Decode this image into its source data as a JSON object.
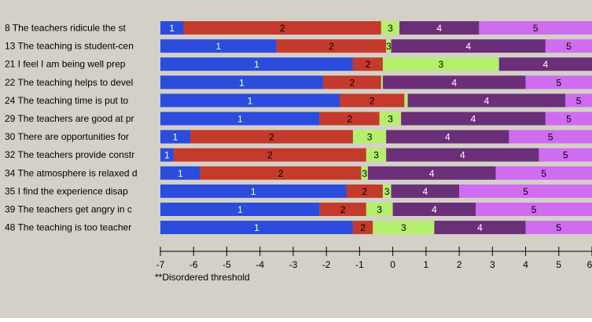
{
  "chart_data": {
    "type": "bar",
    "orientation": "horizontal",
    "stacked": true,
    "xlim": [
      -7,
      6
    ],
    "x_ticks": [
      "-7",
      "-6",
      "-5",
      "-4",
      "-3",
      "-2",
      "-1",
      "0",
      "1",
      "2",
      "3",
      "4",
      "5",
      "6"
    ],
    "footnote": "**Disordered threshold",
    "segment_colors": {
      "1": "#2b4cdc",
      "2": "#c43a2c",
      "3": "#b4f06c",
      "4": "#6a2f78",
      "5": "#cf6cf0"
    },
    "items": [
      {
        "label": "8 The teachers ridicule the st",
        "segments": [
          {
            "cat": "1",
            "from": -7,
            "to": -6.3
          },
          {
            "cat": "2",
            "from": -6.3,
            "to": -0.35
          },
          {
            "cat": "3",
            "from": -0.35,
            "to": 0.2
          },
          {
            "cat": "4",
            "from": 0.2,
            "to": 2.6
          },
          {
            "cat": "5",
            "from": 2.6,
            "to": 6
          }
        ]
      },
      {
        "label": "13 The teaching is student-cen",
        "segments": [
          {
            "cat": "1",
            "from": -7,
            "to": -3.5
          },
          {
            "cat": "2",
            "from": -3.5,
            "to": -0.2
          },
          {
            "cat": "3",
            "from": -0.2,
            "to": -0.05
          },
          {
            "cat": "4",
            "from": -0.05,
            "to": 4.6
          },
          {
            "cat": "5",
            "from": 4.6,
            "to": 6
          }
        ]
      },
      {
        "label": "21 I feel I am being well prep",
        "segments": [
          {
            "cat": "1",
            "from": -7,
            "to": -1.2
          },
          {
            "cat": "2",
            "from": -1.2,
            "to": -0.3
          },
          {
            "cat": "3",
            "from": -0.3,
            "to": 3.2
          },
          {
            "cat": "4",
            "from": 3.2,
            "to": 6
          }
        ]
      },
      {
        "label": "22 The teaching helps to devel",
        "segments": [
          {
            "cat": "1",
            "from": -7,
            "to": -2.1
          },
          {
            "cat": "2",
            "from": -2.1,
            "to": -0.35
          },
          {
            "cat": "3",
            "from": -0.35,
            "to": -0.3
          },
          {
            "cat": "4",
            "from": -0.3,
            "to": 4.0
          },
          {
            "cat": "5",
            "from": 4.0,
            "to": 6
          }
        ]
      },
      {
        "label": "24 The teaching time is put to",
        "segments": [
          {
            "cat": "1",
            "from": -7,
            "to": -1.6
          },
          {
            "cat": "2",
            "from": -1.6,
            "to": 0.35
          },
          {
            "cat": "3",
            "from": 0.35,
            "to": 0.45
          },
          {
            "cat": "4",
            "from": 0.45,
            "to": 5.2
          },
          {
            "cat": "5",
            "from": 5.2,
            "to": 6
          }
        ]
      },
      {
        "label": "29 The teachers are good at pr",
        "segments": [
          {
            "cat": "1",
            "from": -7,
            "to": -2.2
          },
          {
            "cat": "2",
            "from": -2.2,
            "to": -0.4
          },
          {
            "cat": "3",
            "from": -0.4,
            "to": 0.25
          },
          {
            "cat": "4",
            "from": 0.25,
            "to": 4.6
          },
          {
            "cat": "5",
            "from": 4.6,
            "to": 6
          }
        ]
      },
      {
        "label": "30 There are opportunities for",
        "segments": [
          {
            "cat": "1",
            "from": -7,
            "to": -6.1
          },
          {
            "cat": "2",
            "from": -6.1,
            "to": -1.2
          },
          {
            "cat": "3",
            "from": -1.2,
            "to": -0.2
          },
          {
            "cat": "4",
            "from": -0.2,
            "to": 3.5
          },
          {
            "cat": "5",
            "from": 3.5,
            "to": 6
          }
        ]
      },
      {
        "label": "32 The teachers provide constr",
        "segments": [
          {
            "cat": "1",
            "from": -7,
            "to": -6.6
          },
          {
            "cat": "2",
            "from": -6.6,
            "to": -0.8
          },
          {
            "cat": "3",
            "from": -0.8,
            "to": -0.2
          },
          {
            "cat": "4",
            "from": -0.2,
            "to": 4.4
          },
          {
            "cat": "5",
            "from": 4.4,
            "to": 6
          }
        ]
      },
      {
        "label": "34 The atmosphere is relaxed d",
        "segments": [
          {
            "cat": "1",
            "from": -7,
            "to": -5.8
          },
          {
            "cat": "2",
            "from": -5.8,
            "to": -0.95
          },
          {
            "cat": "3",
            "from": -0.95,
            "to": -0.75
          },
          {
            "cat": "4",
            "from": -0.75,
            "to": 3.1
          },
          {
            "cat": "5",
            "from": 3.1,
            "to": 6
          }
        ]
      },
      {
        "label": "35 I find the experience disap",
        "segments": [
          {
            "cat": "1",
            "from": -7,
            "to": -1.4
          },
          {
            "cat": "2",
            "from": -1.4,
            "to": -0.3
          },
          {
            "cat": "3",
            "from": -0.3,
            "to": -0.05
          },
          {
            "cat": "4",
            "from": -0.05,
            "to": 2.0
          },
          {
            "cat": "5",
            "from": 2.0,
            "to": 6
          }
        ]
      },
      {
        "label": "39 The teachers get angry in c",
        "segments": [
          {
            "cat": "1",
            "from": -7,
            "to": -2.2
          },
          {
            "cat": "2",
            "from": -2.2,
            "to": -0.8
          },
          {
            "cat": "3",
            "from": -0.8,
            "to": 0.0
          },
          {
            "cat": "4",
            "from": 0.0,
            "to": 2.5
          },
          {
            "cat": "5",
            "from": 2.5,
            "to": 6
          }
        ]
      },
      {
        "label": "48 The teaching is too teacher",
        "segments": [
          {
            "cat": "1",
            "from": -7,
            "to": -1.2
          },
          {
            "cat": "2",
            "from": -1.2,
            "to": -0.6
          },
          {
            "cat": "3",
            "from": -0.6,
            "to": 1.25
          },
          {
            "cat": "4",
            "from": 1.25,
            "to": 4.0
          },
          {
            "cat": "5",
            "from": 4.0,
            "to": 6
          }
        ]
      }
    ]
  }
}
